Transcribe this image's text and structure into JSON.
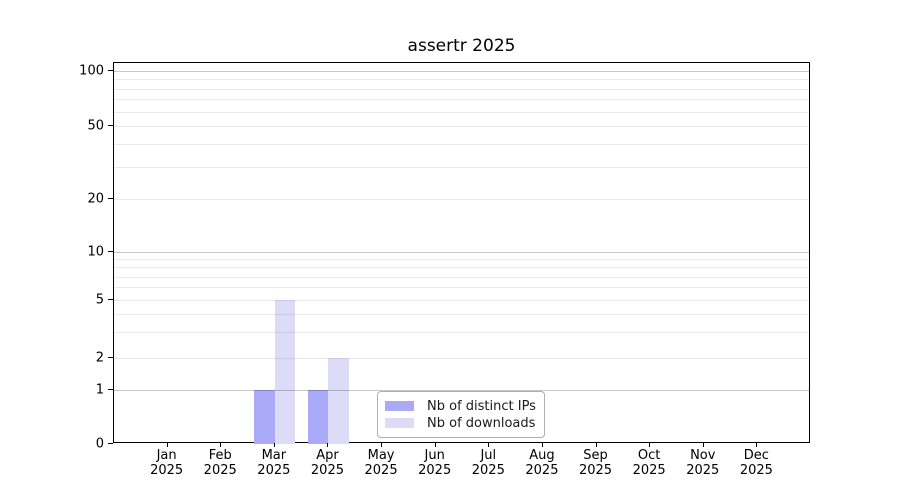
{
  "title": "assertr 2025",
  "chart_data": {
    "type": "bar",
    "title": "assertr 2025",
    "xlabel": "",
    "ylabel": "",
    "categories": [
      "Jan 2025",
      "Feb 2025",
      "Mar 2025",
      "Apr 2025",
      "May 2025",
      "Jun 2025",
      "Jul 2025",
      "Aug 2025",
      "Sep 2025",
      "Oct 2025",
      "Nov 2025",
      "Dec 2025"
    ],
    "series": [
      {
        "name": "Nb of distinct IPs",
        "color": "#aaaaf8",
        "values": [
          0,
          0,
          1,
          1,
          0,
          0,
          0,
          0,
          0,
          0,
          0,
          0
        ]
      },
      {
        "name": "Nb of downloads",
        "color": "#dcdcf9",
        "values": [
          0,
          0,
          5,
          2,
          0,
          0,
          0,
          0,
          0,
          0,
          0,
          0
        ]
      }
    ],
    "yscale": "symlog",
    "y_ticks": [
      0,
      1,
      2,
      5,
      10,
      20,
      50,
      100
    ],
    "y_major_ticks": [
      1,
      10,
      100
    ],
    "y_minor_gridlines": [
      3,
      4,
      6,
      7,
      8,
      9,
      30,
      40,
      60,
      70,
      80,
      90
    ],
    "ylim": [
      0,
      110
    ],
    "grid": "horizontal major and minor lines, drawn over bars",
    "legend_position": "inside plot, lower center",
    "colors": {
      "bar_distinct_ips": "#aaaaf8",
      "bar_downloads": "#dcdcf9",
      "grid_major": "#c8c8c8",
      "grid_minor": "#e9e9e9",
      "axis": "#000000"
    }
  }
}
